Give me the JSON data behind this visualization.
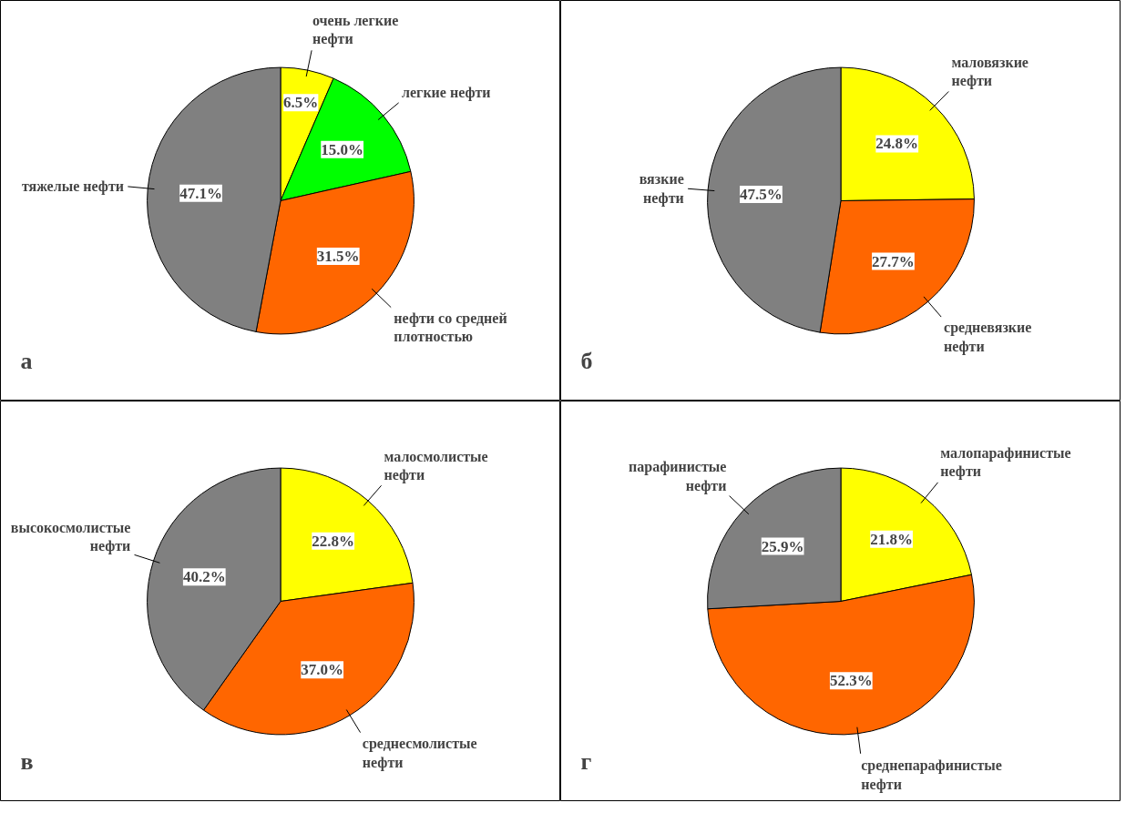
{
  "chart_data": [
    {
      "type": "pie",
      "annotations": [
        "а"
      ],
      "categories": [
        "очень легкие\nнефти",
        "легкие нефти",
        "нефти со средней\nплотностью",
        "тяжелые нефти"
      ],
      "values": [
        6.5,
        15.0,
        31.5,
        47.1
      ],
      "value_labels": [
        "6.5%",
        "15.0%",
        "31.5%",
        "47.1%"
      ],
      "colors": [
        "#ffff00",
        "#00ff00",
        "#ff6600",
        "#808080"
      ]
    },
    {
      "type": "pie",
      "annotations": [
        "б"
      ],
      "categories": [
        "маловязкие\nнефти",
        "средневязкие\nнефти",
        "вязкие\nнефти"
      ],
      "values": [
        24.8,
        27.7,
        47.5
      ],
      "value_labels": [
        "24.8%",
        "27.7%",
        "47.5%"
      ],
      "colors": [
        "#ffff00",
        "#ff6600",
        "#808080"
      ]
    },
    {
      "type": "pie",
      "annotations": [
        "в"
      ],
      "categories": [
        "малосмолистые\nнефти",
        "среднесмолистые\nнефти",
        "высокосмолистые\nнефти"
      ],
      "values": [
        22.8,
        37.0,
        40.2
      ],
      "value_labels": [
        "22.8%",
        "37.0%",
        "40.2%"
      ],
      "colors": [
        "#ffff00",
        "#ff6600",
        "#808080"
      ]
    },
    {
      "type": "pie",
      "annotations": [
        "г"
      ],
      "categories": [
        "малопарафинистые\nнефти",
        "среднепарафинистые\nнефти",
        "парафинистые\nнефти"
      ],
      "values": [
        21.8,
        52.3,
        25.9
      ],
      "value_labels": [
        "21.8%",
        "52.3%",
        "25.9%"
      ],
      "colors": [
        "#ffff00",
        "#ff6600",
        "#808080"
      ]
    }
  ]
}
